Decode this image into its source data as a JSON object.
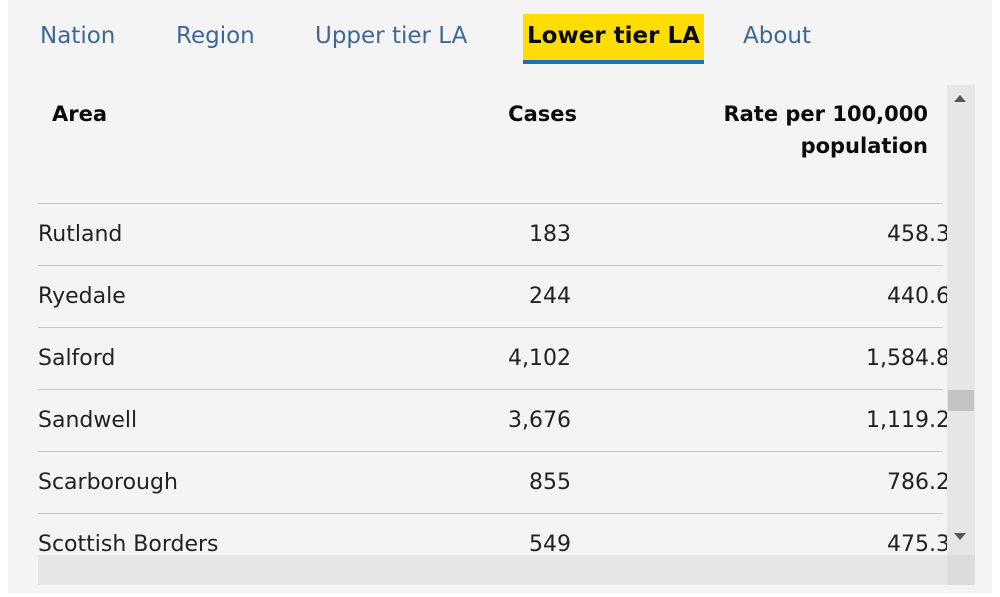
{
  "tabs": [
    "Nation",
    "Region",
    "Upper tier LA",
    "Lower tier LA",
    "About"
  ],
  "selected_tab": 3,
  "table": {
    "headers": [
      "Area",
      "Cases",
      "Rate per 100,000 population"
    ],
    "rows": [
      [
        "Rutland",
        "183",
        "458.3"
      ],
      [
        "Ryedale",
        "244",
        "440.6"
      ],
      [
        "Salford",
        "4,102",
        "1,584.8"
      ],
      [
        "Sandwell",
        "3,676",
        "1,119.2"
      ],
      [
        "Scarborough",
        "855",
        "786.2"
      ],
      [
        "Scottish Borders",
        "549",
        "475.3"
      ]
    ]
  }
}
